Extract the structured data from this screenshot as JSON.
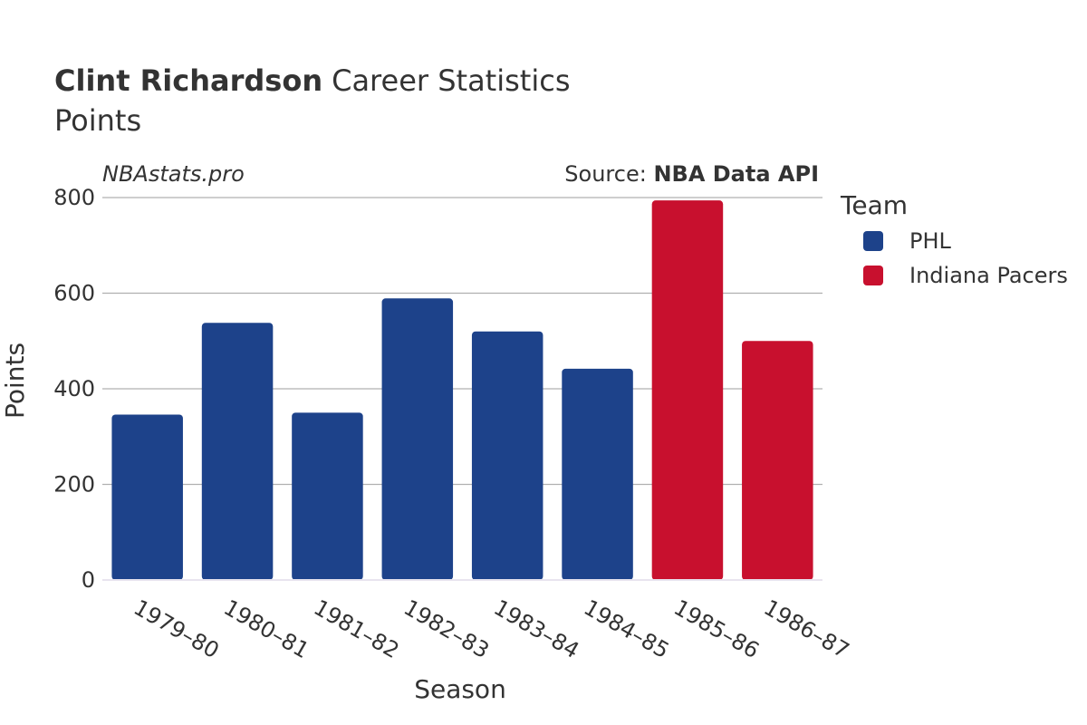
{
  "chart_data": {
    "type": "bar",
    "title_bold": "Clint Richardson",
    "title_rest": "Career Statistics",
    "subtitle": "Points",
    "watermark": "NBAstats.pro",
    "source_prefix": "Source: ",
    "source_name": "NBA Data API",
    "xlabel": "Season",
    "ylabel": "Points",
    "ylim": [
      0,
      800
    ],
    "yticks": [
      "0",
      "200",
      "400",
      "600",
      "800"
    ],
    "ytick_values": [
      0,
      200,
      400,
      600,
      800
    ],
    "categories": [
      "1979–80",
      "1980–81",
      "1981–82",
      "1982–83",
      "1983–84",
      "1984–85",
      "1985–86",
      "1986–87"
    ],
    "values": [
      346,
      538,
      350,
      589,
      520,
      442,
      794,
      500
    ],
    "teams": [
      "PHL",
      "PHL",
      "PHL",
      "PHL",
      "PHL",
      "PHL",
      "Indiana Pacers",
      "Indiana Pacers"
    ],
    "legend": {
      "title": "Team",
      "entries": [
        {
          "name": "PHL",
          "color": "#1d428a"
        },
        {
          "name": "Indiana Pacers",
          "color": "#c8102e"
        }
      ]
    }
  }
}
